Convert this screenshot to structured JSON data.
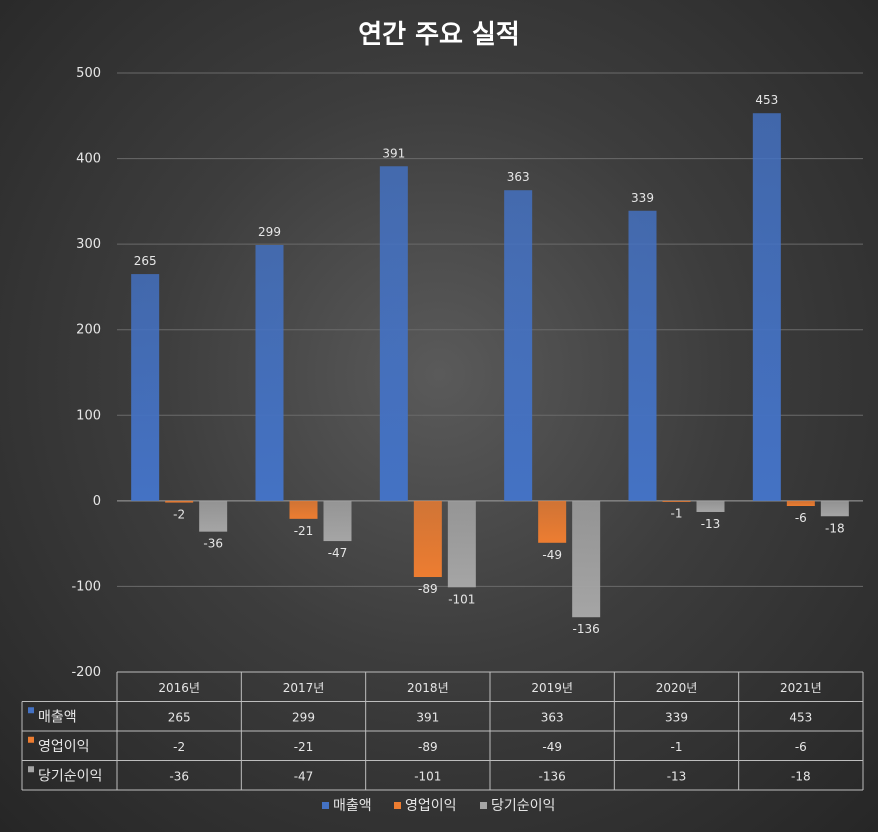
{
  "chart_data": {
    "type": "bar",
    "title": "연간 주요 실적",
    "categories": [
      "2016년",
      "2017년",
      "2018년",
      "2019년",
      "2020년",
      "2021년"
    ],
    "series": [
      {
        "name": "매출액",
        "values": [
          265,
          299,
          391,
          363,
          339,
          453
        ],
        "color": "#4472c4"
      },
      {
        "name": "영업이익",
        "values": [
          -2,
          -21,
          -89,
          -49,
          -1,
          -6
        ],
        "color": "#ed7d31"
      },
      {
        "name": "당기순이익",
        "values": [
          -36,
          -47,
          -101,
          -136,
          -13,
          -18
        ],
        "color": "#a5a5a5"
      }
    ],
    "ylim": [
      -200,
      500
    ],
    "yticks": [
      500,
      400,
      300,
      200,
      100,
      0,
      -100,
      -200
    ],
    "grid": true,
    "legend": "bottom",
    "data_table": true
  }
}
